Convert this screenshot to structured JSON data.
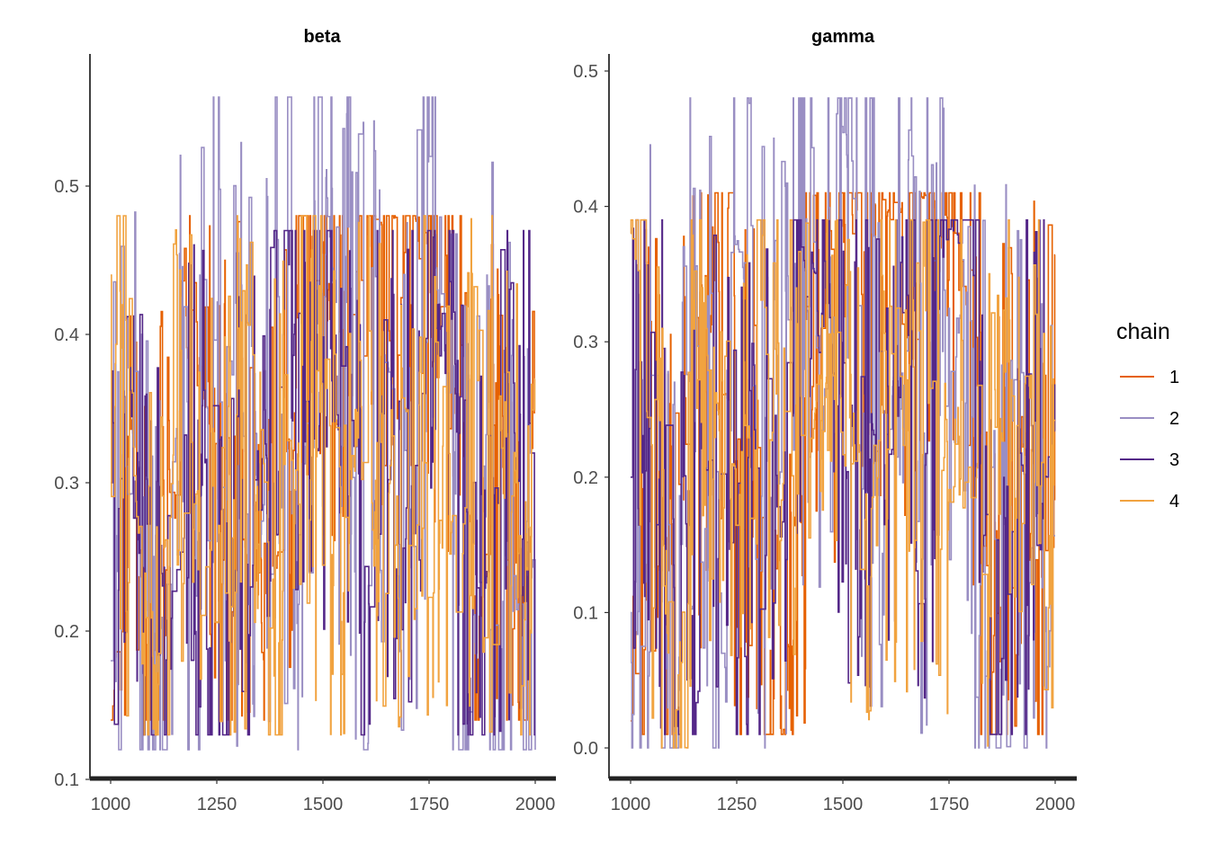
{
  "chart_data": [
    {
      "type": "line",
      "title": "beta",
      "xlabel": "",
      "ylabel": "",
      "xlim": [
        1000,
        2000
      ],
      "ylim": [
        0.1,
        0.58
      ],
      "x_ticks": [
        1000,
        1250,
        1500,
        1750,
        2000
      ],
      "y_ticks": [
        0.1,
        0.2,
        0.3,
        0.4,
        0.5
      ],
      "grid": false,
      "series": [
        {
          "name": "1",
          "color": "#e66101",
          "lo": 0.14,
          "hi": 0.48,
          "x": [
            1000,
            1050,
            1100,
            1150,
            1200,
            1250,
            1300,
            1350,
            1400,
            1450,
            1500,
            1550,
            1600,
            1650,
            1700,
            1750,
            1800,
            1850,
            1900,
            1950,
            2000
          ],
          "values": [
            0.14,
            0.33,
            0.2,
            0.3,
            0.42,
            0.25,
            0.3,
            0.15,
            0.28,
            0.42,
            0.43,
            0.46,
            0.48,
            0.47,
            0.49,
            0.45,
            0.42,
            0.2,
            0.3,
            0.25,
            0.28
          ]
        },
        {
          "name": "2",
          "color": "#998ec3",
          "lo": 0.12,
          "hi": 0.56,
          "x": [
            1000,
            1050,
            1100,
            1150,
            1200,
            1250,
            1300,
            1350,
            1400,
            1450,
            1500,
            1550,
            1600,
            1650,
            1700,
            1750,
            1800,
            1850,
            1900,
            1950,
            2000
          ],
          "values": [
            0.18,
            0.3,
            0.12,
            0.35,
            0.28,
            0.45,
            0.33,
            0.27,
            0.4,
            0.3,
            0.5,
            0.35,
            0.33,
            0.38,
            0.3,
            0.48,
            0.3,
            0.15,
            0.3,
            0.2,
            0.26
          ]
        },
        {
          "name": "3",
          "color": "#542788",
          "lo": 0.13,
          "hi": 0.47,
          "x": [
            1000,
            1050,
            1100,
            1150,
            1200,
            1250,
            1300,
            1350,
            1400,
            1450,
            1500,
            1550,
            1600,
            1650,
            1700,
            1750,
            1800,
            1850,
            1900,
            1950,
            2000
          ],
          "values": [
            0.3,
            0.35,
            0.2,
            0.25,
            0.3,
            0.22,
            0.28,
            0.25,
            0.44,
            0.4,
            0.3,
            0.33,
            0.28,
            0.35,
            0.3,
            0.46,
            0.4,
            0.15,
            0.28,
            0.3,
            0.3
          ]
        },
        {
          "name": "4",
          "color": "#f1a340",
          "lo": 0.13,
          "hi": 0.48,
          "x": [
            1000,
            1050,
            1100,
            1150,
            1200,
            1250,
            1300,
            1350,
            1400,
            1450,
            1500,
            1550,
            1600,
            1650,
            1700,
            1750,
            1800,
            1850,
            1900,
            1950,
            2000
          ],
          "values": [
            0.44,
            0.3,
            0.15,
            0.35,
            0.3,
            0.25,
            0.33,
            0.3,
            0.25,
            0.35,
            0.3,
            0.28,
            0.33,
            0.3,
            0.35,
            0.3,
            0.28,
            0.3,
            0.32,
            0.3,
            0.2
          ]
        }
      ]
    },
    {
      "type": "line",
      "title": "gamma",
      "xlabel": "",
      "ylabel": "",
      "xlim": [
        1000,
        2000
      ],
      "ylim": [
        -0.02,
        0.5
      ],
      "x_ticks": [
        1000,
        1250,
        1500,
        1750,
        2000
      ],
      "y_ticks": [
        0.0,
        0.1,
        0.2,
        0.3,
        0.4,
        0.5
      ],
      "grid": false,
      "series": [
        {
          "name": "1",
          "color": "#e66101",
          "lo": 0.01,
          "hi": 0.41,
          "x": [
            1000,
            1050,
            1100,
            1150,
            1200,
            1250,
            1300,
            1350,
            1400,
            1450,
            1500,
            1550,
            1600,
            1650,
            1700,
            1750,
            1800,
            1850,
            1900,
            1950,
            2000
          ],
          "values": [
            0.02,
            0.2,
            0.1,
            0.25,
            0.32,
            0.2,
            0.25,
            0.05,
            0.2,
            0.35,
            0.36,
            0.4,
            0.4,
            0.39,
            0.41,
            0.37,
            0.3,
            0.1,
            0.2,
            0.2,
            0.22
          ]
        },
        {
          "name": "2",
          "color": "#998ec3",
          "lo": 0.0,
          "hi": 0.48,
          "x": [
            1000,
            1050,
            1100,
            1150,
            1200,
            1250,
            1300,
            1350,
            1400,
            1450,
            1500,
            1550,
            1600,
            1650,
            1700,
            1750,
            1800,
            1850,
            1900,
            1950,
            2000
          ],
          "values": [
            0.1,
            0.2,
            0.01,
            0.3,
            0.2,
            0.38,
            0.25,
            0.2,
            0.4,
            0.25,
            0.45,
            0.3,
            0.25,
            0.32,
            0.25,
            0.4,
            0.25,
            0.05,
            0.2,
            0.15,
            0.1
          ]
        },
        {
          "name": "3",
          "color": "#542788",
          "lo": 0.01,
          "hi": 0.39,
          "x": [
            1000,
            1050,
            1100,
            1150,
            1200,
            1250,
            1300,
            1350,
            1400,
            1450,
            1500,
            1550,
            1600,
            1650,
            1700,
            1750,
            1800,
            1850,
            1900,
            1950,
            2000
          ],
          "values": [
            0.2,
            0.3,
            0.1,
            0.15,
            0.25,
            0.12,
            0.2,
            0.15,
            0.35,
            0.35,
            0.2,
            0.25,
            0.2,
            0.28,
            0.22,
            0.38,
            0.35,
            0.05,
            0.2,
            0.2,
            0.2
          ]
        },
        {
          "name": "4",
          "color": "#f1a340",
          "lo": 0.0,
          "hi": 0.39,
          "x": [
            1000,
            1050,
            1100,
            1150,
            1200,
            1250,
            1300,
            1350,
            1400,
            1450,
            1500,
            1550,
            1600,
            1650,
            1700,
            1750,
            1800,
            1850,
            1900,
            1950,
            2000
          ],
          "values": [
            0.38,
            0.2,
            0.01,
            0.3,
            0.25,
            0.2,
            0.28,
            0.22,
            0.15,
            0.3,
            0.2,
            0.2,
            0.28,
            0.2,
            0.3,
            0.2,
            0.22,
            0.2,
            0.25,
            0.3,
            0.1
          ]
        }
      ]
    }
  ],
  "legend": {
    "title": "chain",
    "placement": "right",
    "items": [
      {
        "label": "1",
        "color": "#e66101"
      },
      {
        "label": "2",
        "color": "#998ec3"
      },
      {
        "label": "3",
        "color": "#542788"
      },
      {
        "label": "4",
        "color": "#f1a340"
      }
    ]
  }
}
